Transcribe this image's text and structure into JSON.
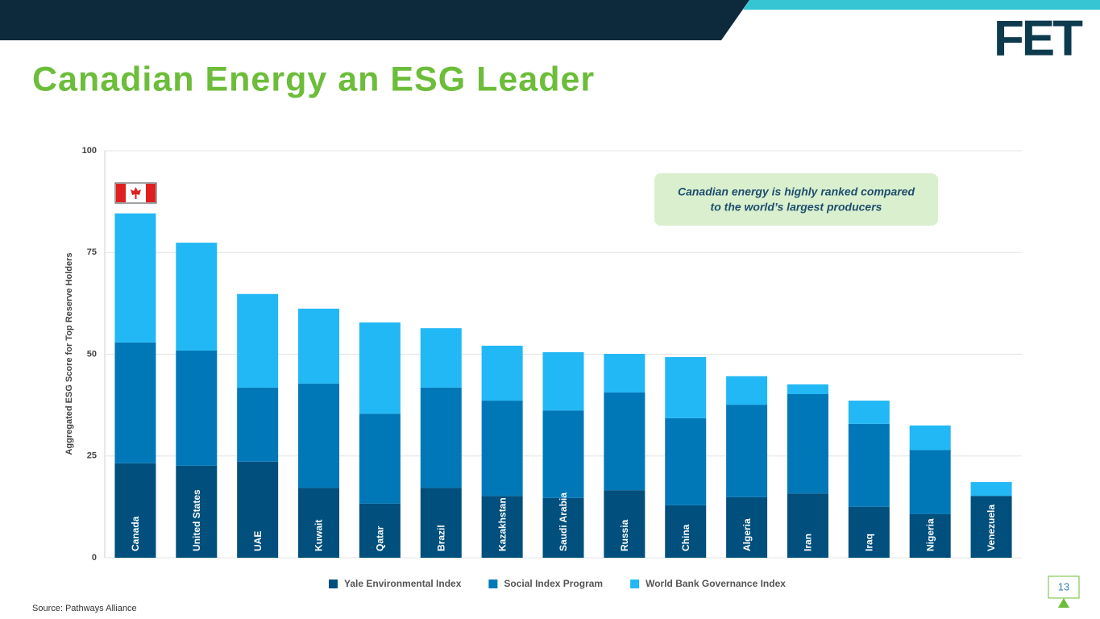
{
  "title": "Canadian Energy an ESG Leader",
  "logo": "FET",
  "page_number": "13",
  "source": "Source: Pathways Alliance",
  "chart_data": {
    "type": "stacked_bar",
    "y_label": "Aggregated ESG Score for Top Reserve Holders",
    "annotation": [
      "Canadian energy is highly ranked compared",
      "to the world’s largest producers"
    ],
    "categories": [
      "Canada",
      "United States",
      "UAE",
      "Kuwait",
      "Qatar",
      "Brazil",
      "Kazakhstan",
      "Saudi Arabia",
      "Russia",
      "China",
      "Algeria",
      "Iran",
      "Iraq",
      "Nigeria",
      "Venezuela"
    ],
    "series": [
      {
        "name": "Yale Environmental Index",
        "color": "#004f7c",
        "values": [
          23.2,
          22.6,
          23.6,
          17.2,
          13.3,
          17.2,
          15.2,
          14.7,
          16.6,
          12.9,
          14.9,
          15.8,
          12.5,
          10.7,
          15.2
        ]
      },
      {
        "name": "Social Index Program",
        "color": "#0078b8",
        "values": [
          29.7,
          28.3,
          18.2,
          25.6,
          22.1,
          24.6,
          23.4,
          21.5,
          24.0,
          21.4,
          22.7,
          24.4,
          20.4,
          15.8,
          0
        ]
      },
      {
        "name": "World Bank Governance Index",
        "color": "#22b8f5",
        "values": [
          31.7,
          26.5,
          23.0,
          18.4,
          22.4,
          14.6,
          13.5,
          14.3,
          9.5,
          15.0,
          7.0,
          2.4,
          5.7,
          6.0,
          3.4
        ]
      }
    ],
    "ylim": [
      0,
      100
    ],
    "yticks": [
      0,
      25,
      50,
      75,
      100
    ],
    "grid": true,
    "legend": "bottom"
  }
}
